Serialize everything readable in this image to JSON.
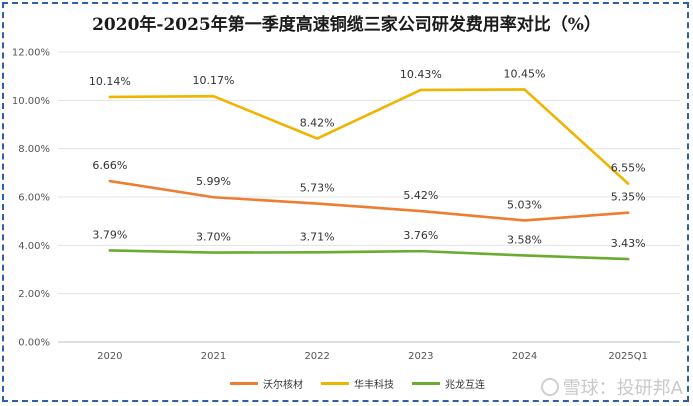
{
  "chart_data": {
    "type": "line",
    "title": "2020年-2025年第一季度高速铜缆三家公司研发费用率对比（%）",
    "categories": [
      "2020",
      "2021",
      "2022",
      "2023",
      "2024",
      "2025Q1"
    ],
    "ylim": [
      0,
      12
    ],
    "yticks": [
      "0.00%",
      "2.00%",
      "4.00%",
      "6.00%",
      "8.00%",
      "10.00%",
      "12.00%"
    ],
    "grid": "horizontal",
    "legend_position": "bottom",
    "series": [
      {
        "name": "沃尔核材",
        "color": "#ed7d31",
        "values": [
          6.66,
          5.99,
          5.73,
          5.42,
          5.03,
          5.35
        ],
        "labels": [
          "6.66%",
          "5.99%",
          "5.73%",
          "5.42%",
          "5.03%",
          "5.35%"
        ]
      },
      {
        "name": "华丰科技",
        "color": "#f0b400",
        "values": [
          10.14,
          10.17,
          8.42,
          10.43,
          10.45,
          6.55
        ],
        "labels": [
          "10.14%",
          "10.17%",
          "8.42%",
          "10.43%",
          "10.45%",
          "6.55%"
        ]
      },
      {
        "name": "兆龙互连",
        "color": "#6aac2f",
        "values": [
          3.79,
          3.7,
          3.71,
          3.76,
          3.58,
          3.43
        ],
        "labels": [
          "3.79%",
          "3.70%",
          "3.71%",
          "3.76%",
          "3.58%",
          "3.43%"
        ]
      }
    ]
  },
  "watermark": {
    "text": "雪球：投研邦A"
  }
}
